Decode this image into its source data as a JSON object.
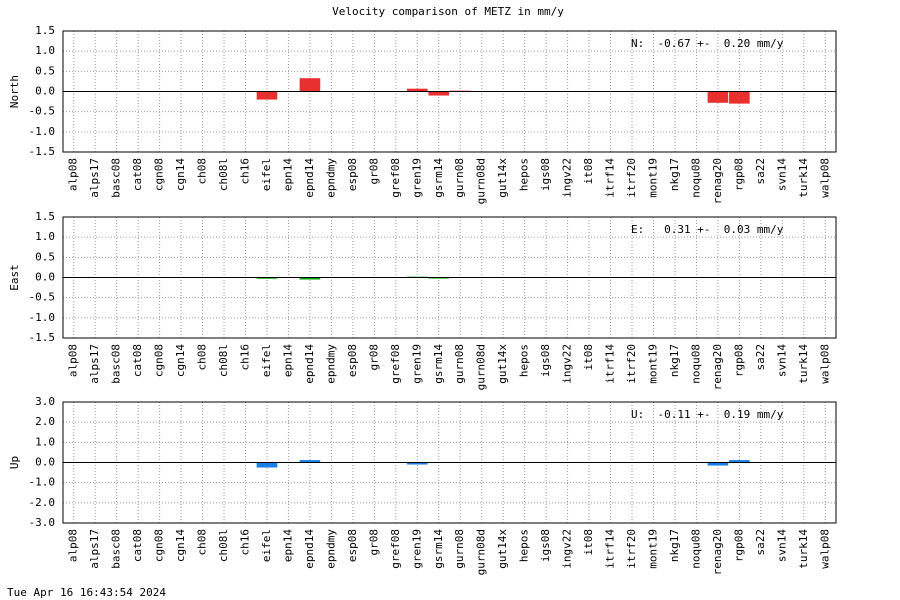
{
  "title": "Velocity comparison of METZ in mm/y",
  "footer": "Tue Apr 16 16:43:54 2024",
  "chart_data": [
    {
      "type": "bar",
      "ylabel": "North",
      "annotation": "N:  -0.67 +-  0.20 mm/y",
      "color": "#e8302e",
      "categories": [
        "alp08",
        "alps17",
        "basc08",
        "cat08",
        "cgn08",
        "cgn14",
        "ch08",
        "ch08l",
        "ch16",
        "eifel",
        "epn14",
        "epnd14",
        "epndmy",
        "esp08",
        "gr08",
        "gref08",
        "gren19",
        "gsrm14",
        "gurn08",
        "gurn08d",
        "gut14x",
        "hepos",
        "igs08",
        "ingv22",
        "it08",
        "itrf14",
        "itrf20",
        "mont19",
        "nkg17",
        "noqu08",
        "renag20",
        "rgp08",
        "sa22",
        "svn14",
        "turk14",
        "walp08"
      ],
      "values": [
        null,
        null,
        null,
        null,
        null,
        null,
        null,
        null,
        null,
        -0.2,
        null,
        0.33,
        null,
        null,
        null,
        null,
        0.07,
        -0.1,
        0.02,
        null,
        null,
        null,
        null,
        null,
        null,
        null,
        null,
        null,
        null,
        null,
        -0.28,
        -0.3,
        null,
        null,
        null,
        null
      ],
      "ylim": [
        -1.5,
        1.5
      ],
      "yticks": [
        1.5,
        {
          "value": 1,
          "label": "1.0"
        },
        0.5,
        {
          "value": 0,
          "label": "0.0"
        },
        -0.5,
        {
          "value": -1,
          "label": "-1.0"
        },
        -1.5
      ],
      "grid": true
    },
    {
      "type": "bar",
      "ylabel": "East",
      "annotation": "E:   0.31 +-  0.03 mm/y",
      "color": "#00a000",
      "categories": [
        "alp08",
        "alps17",
        "basc08",
        "cat08",
        "cgn08",
        "cgn14",
        "ch08",
        "ch08l",
        "ch16",
        "eifel",
        "epn14",
        "epnd14",
        "epndmy",
        "esp08",
        "gr08",
        "gref08",
        "gren19",
        "gsrm14",
        "gurn08",
        "gurn08d",
        "gut14x",
        "hepos",
        "igs08",
        "ingv22",
        "it08",
        "itrf14",
        "itrf20",
        "mont19",
        "nkg17",
        "noqu08",
        "renag20",
        "rgp08",
        "sa22",
        "svn14",
        "turk14",
        "walp08"
      ],
      "values": [
        null,
        null,
        null,
        null,
        null,
        null,
        null,
        null,
        null,
        -0.03,
        null,
        -0.05,
        null,
        null,
        null,
        null,
        0.02,
        -0.02,
        null,
        null,
        null,
        null,
        null,
        null,
        null,
        null,
        null,
        null,
        null,
        null,
        null,
        null,
        null,
        null,
        null,
        null
      ],
      "ylim": [
        -1.5,
        1.5
      ],
      "yticks": [
        1.5,
        {
          "value": 1,
          "label": "1.0"
        },
        0.5,
        {
          "value": 0,
          "label": "0.0"
        },
        -0.5,
        {
          "value": -1,
          "label": "-1.0"
        },
        -1.5
      ],
      "grid": true
    },
    {
      "type": "bar",
      "ylabel": "Up",
      "annotation": "U:  -0.11 +-  0.19 mm/y",
      "color": "#1a7fe6",
      "categories": [
        "alp08",
        "alps17",
        "basc08",
        "cat08",
        "cgn08",
        "cgn14",
        "ch08",
        "ch08l",
        "ch16",
        "eifel",
        "epn14",
        "epnd14",
        "epndmy",
        "esp08",
        "gr08",
        "gref08",
        "gren19",
        "gsrm14",
        "gurn08",
        "gurn08d",
        "gut14x",
        "hepos",
        "igs08",
        "ingv22",
        "it08",
        "itrf14",
        "itrf20",
        "mont19",
        "nkg17",
        "noqu08",
        "renag20",
        "rgp08",
        "sa22",
        "svn14",
        "turk14",
        "walp08"
      ],
      "values": [
        null,
        null,
        null,
        null,
        null,
        null,
        null,
        null,
        null,
        -0.25,
        null,
        0.12,
        null,
        null,
        null,
        null,
        -0.1,
        null,
        null,
        null,
        null,
        null,
        null,
        null,
        null,
        null,
        null,
        null,
        null,
        null,
        -0.15,
        0.12,
        null,
        null,
        null,
        null
      ],
      "ylim": [
        -3,
        3
      ],
      "yticks": [
        {
          "value": 3,
          "label": "3.0"
        },
        {
          "value": 2,
          "label": "2.0"
        },
        {
          "value": 1,
          "label": "1.0"
        },
        {
          "value": 0,
          "label": "0.0"
        },
        {
          "value": -1,
          "label": "-1.0"
        },
        {
          "value": -2,
          "label": "-2.0"
        },
        {
          "value": -3,
          "label": "-3.0"
        }
      ],
      "grid": true
    }
  ]
}
